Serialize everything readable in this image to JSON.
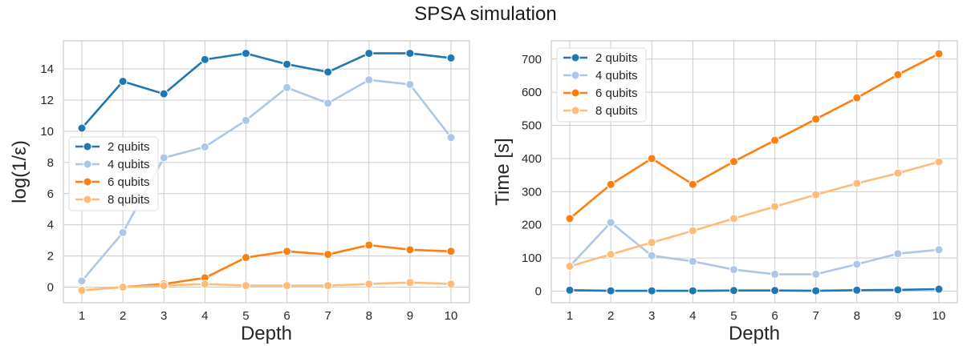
{
  "title": "SPSA simulation",
  "chart_data": [
    {
      "type": "line",
      "xlabel": "Depth",
      "ylabel": "log(1/ε)",
      "x": [
        1,
        2,
        3,
        4,
        5,
        6,
        7,
        8,
        9,
        10
      ],
      "xticks": [
        "1",
        "2",
        "3",
        "4",
        "5",
        "6",
        "7",
        "8",
        "9",
        "10"
      ],
      "xlim": [
        0.55,
        10.45
      ],
      "ylim": [
        -1.0,
        15.8
      ],
      "yticks": [
        "0",
        "2",
        "4",
        "6",
        "8",
        "10",
        "12",
        "14"
      ],
      "ytick_values": [
        0,
        2,
        4,
        6,
        8,
        10,
        12,
        14
      ],
      "grid": true,
      "legend_position": "center-left",
      "series": [
        {
          "name": "2 qubits",
          "color": "#1f77b4",
          "values": [
            10.2,
            13.2,
            12.4,
            14.6,
            15.0,
            14.3,
            13.8,
            15.0,
            15.0,
            14.7
          ]
        },
        {
          "name": "4 qubits",
          "color": "#aec7e8",
          "values": [
            0.4,
            3.5,
            8.3,
            9.0,
            10.7,
            12.8,
            11.8,
            13.3,
            13.0,
            9.6
          ]
        },
        {
          "name": "6 qubits",
          "color": "#ff7f0e",
          "values": [
            -0.2,
            0.0,
            0.2,
            0.6,
            1.9,
            2.3,
            2.1,
            2.7,
            2.4,
            2.3
          ]
        },
        {
          "name": "8 qubits",
          "color": "#ffbb78",
          "values": [
            -0.2,
            0.0,
            0.1,
            0.2,
            0.1,
            0.1,
            0.1,
            0.2,
            0.3,
            0.2
          ]
        }
      ]
    },
    {
      "type": "line",
      "xlabel": "Depth",
      "ylabel": "Time [s]",
      "x": [
        1,
        2,
        3,
        4,
        5,
        6,
        7,
        8,
        9,
        10
      ],
      "xticks": [
        "1",
        "2",
        "3",
        "4",
        "5",
        "6",
        "7",
        "8",
        "9",
        "10"
      ],
      "xlim": [
        0.55,
        10.45
      ],
      "ylim": [
        -35,
        755
      ],
      "yticks": [
        "0",
        "100",
        "200",
        "300",
        "400",
        "500",
        "600",
        "700"
      ],
      "ytick_values": [
        0,
        100,
        200,
        300,
        400,
        500,
        600,
        700
      ],
      "grid": true,
      "legend_position": "top-left",
      "series": [
        {
          "name": "2 qubits",
          "color": "#1f77b4",
          "values": [
            3,
            1,
            1,
            1,
            2,
            2,
            1,
            3,
            4,
            6
          ]
        },
        {
          "name": "4 qubits",
          "color": "#aec7e8",
          "values": [
            75,
            207,
            107,
            90,
            65,
            51,
            51,
            81,
            113,
            125
          ]
        },
        {
          "name": "6 qubits",
          "color": "#ff7f0e",
          "values": [
            219,
            322,
            400,
            322,
            391,
            455,
            519,
            583,
            653,
            716
          ]
        },
        {
          "name": "8 qubits",
          "color": "#ffbb78",
          "values": [
            75,
            111,
            147,
            182,
            219,
            255,
            291,
            325,
            356,
            390
          ]
        }
      ]
    }
  ]
}
